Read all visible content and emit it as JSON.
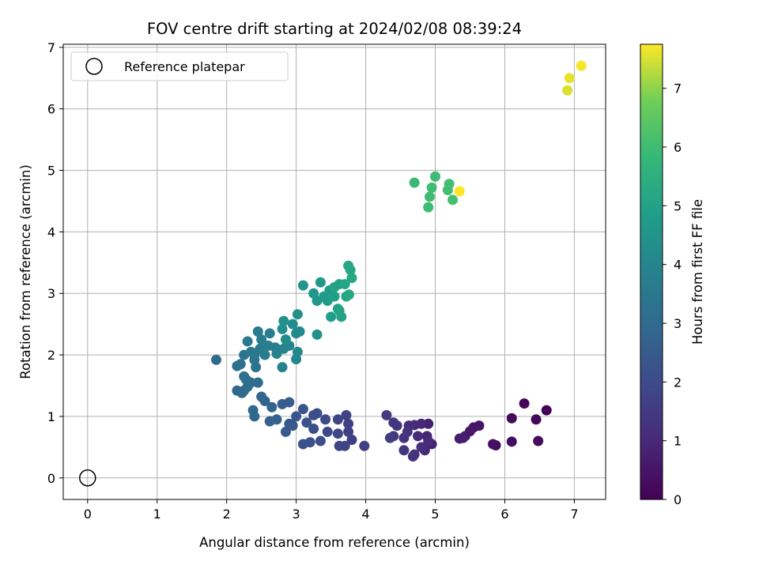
{
  "chart_data": {
    "type": "scatter",
    "title": "FOV centre drift starting at 2024/02/08 08:39:24",
    "xlabel": "Angular distance from reference (arcmin)",
    "ylabel": "Rotation from reference (arcmin)",
    "xlim": [
      -0.35,
      7.45
    ],
    "ylim": [
      -0.35,
      7.05
    ],
    "x_ticks": [
      0,
      1,
      2,
      3,
      4,
      5,
      6,
      7
    ],
    "y_ticks": [
      0,
      1,
      2,
      3,
      4,
      5,
      6,
      7
    ],
    "grid": true,
    "legend": {
      "position": "top-left",
      "entries": [
        "Reference platepar"
      ]
    },
    "reference_point": {
      "x": 0,
      "y": 0
    },
    "colorbar": {
      "label": "Hours from first FF file",
      "colormap": "viridis",
      "range": [
        0,
        7.75
      ],
      "ticks": [
        0,
        1,
        2,
        3,
        4,
        5,
        6,
        7
      ]
    },
    "points": [
      [
        6.6,
        1.1,
        0.05
      ],
      [
        6.28,
        1.21,
        0.1
      ],
      [
        6.45,
        0.95,
        0.15
      ],
      [
        6.1,
        0.97,
        0.2
      ],
      [
        6.48,
        0.6,
        0.25
      ],
      [
        6.1,
        0.59,
        0.3
      ],
      [
        5.87,
        0.53,
        0.35
      ],
      [
        5.83,
        0.55,
        0.4
      ],
      [
        5.63,
        0.85,
        0.5
      ],
      [
        5.55,
        0.82,
        0.55
      ],
      [
        5.5,
        0.76,
        0.6
      ],
      [
        5.43,
        0.68,
        0.65
      ],
      [
        5.35,
        0.64,
        0.7
      ],
      [
        5.4,
        0.65,
        0.75
      ],
      [
        4.9,
        0.88,
        0.8
      ],
      [
        4.95,
        0.55,
        0.85
      ],
      [
        4.88,
        0.68,
        0.9
      ],
      [
        4.8,
        0.88,
        0.95
      ],
      [
        4.85,
        0.45,
        1.0
      ],
      [
        4.75,
        0.68,
        1.05
      ],
      [
        4.7,
        0.86,
        1.1
      ],
      [
        4.62,
        0.85,
        1.15
      ],
      [
        4.55,
        0.65,
        1.2
      ],
      [
        4.7,
        0.38,
        1.25
      ],
      [
        4.68,
        0.35,
        1.3
      ],
      [
        4.55,
        0.45,
        1.35
      ],
      [
        4.4,
        0.68,
        1.4
      ],
      [
        4.45,
        0.85,
        1.45
      ],
      [
        4.3,
        1.02,
        1.5
      ],
      [
        4.35,
        0.65,
        1.55
      ],
      [
        4.8,
        0.5,
        1.2
      ],
      [
        4.9,
        0.6,
        1.1
      ],
      [
        4.6,
        0.75,
        1.3
      ],
      [
        4.4,
        0.9,
        1.35
      ],
      [
        3.98,
        0.52,
        1.6
      ],
      [
        3.8,
        0.62,
        1.65
      ],
      [
        3.75,
        0.75,
        1.7
      ],
      [
        3.72,
        1.02,
        1.75
      ],
      [
        3.7,
        0.52,
        1.8
      ],
      [
        3.62,
        0.52,
        1.85
      ],
      [
        3.6,
        0.72,
        1.9
      ],
      [
        3.45,
        0.75,
        1.95
      ],
      [
        3.42,
        0.95,
        2.0
      ],
      [
        3.35,
        0.6,
        2.05
      ],
      [
        3.25,
        0.8,
        2.1
      ],
      [
        3.3,
        1.05,
        2.15
      ],
      [
        3.2,
        0.58,
        2.2
      ],
      [
        3.15,
        0.9,
        2.25
      ],
      [
        3.1,
        1.12,
        2.3
      ],
      [
        3.0,
        1.0,
        2.35
      ],
      [
        2.9,
        0.88,
        2.4
      ],
      [
        3.1,
        0.55,
        2.2
      ],
      [
        2.95,
        0.85,
        2.45
      ],
      [
        2.85,
        0.75,
        2.5
      ],
      [
        2.9,
        1.23,
        2.55
      ],
      [
        2.8,
        1.2,
        2.6
      ],
      [
        2.72,
        0.95,
        2.65
      ],
      [
        2.62,
        0.92,
        2.7
      ],
      [
        2.65,
        1.15,
        2.75
      ],
      [
        2.55,
        1.25,
        2.8
      ],
      [
        2.5,
        1.32,
        2.85
      ],
      [
        2.4,
        1.0,
        2.9
      ],
      [
        2.38,
        1.1,
        2.95
      ],
      [
        3.75,
        0.88,
        1.7
      ],
      [
        3.6,
        0.95,
        1.8
      ],
      [
        3.25,
        1.02,
        2.1
      ],
      [
        1.85,
        1.92,
        3.0
      ],
      [
        2.25,
        1.42,
        2.95
      ],
      [
        2.15,
        1.42,
        2.9
      ],
      [
        2.22,
        1.38,
        3.0
      ],
      [
        2.3,
        1.48,
        3.05
      ],
      [
        2.45,
        1.55,
        3.1
      ],
      [
        2.35,
        1.55,
        3.1
      ],
      [
        2.28,
        1.6,
        3.15
      ],
      [
        2.15,
        1.82,
        3.2
      ],
      [
        2.2,
        1.85,
        3.25
      ],
      [
        2.25,
        1.65,
        3.2
      ],
      [
        2.42,
        1.8,
        3.3
      ],
      [
        2.4,
        1.92,
        3.35
      ],
      [
        2.25,
        2.0,
        3.4
      ],
      [
        2.3,
        2.22,
        3.45
      ],
      [
        2.35,
        2.05,
        3.5
      ],
      [
        2.48,
        2.1,
        3.55
      ],
      [
        2.45,
        2.38,
        3.6
      ],
      [
        2.62,
        2.35,
        3.65
      ],
      [
        2.55,
        2.0,
        3.7
      ],
      [
        2.7,
        2.12,
        3.75
      ],
      [
        2.72,
        2.02,
        3.8
      ],
      [
        2.8,
        1.8,
        3.85
      ],
      [
        2.82,
        2.1,
        3.9
      ],
      [
        2.9,
        2.15,
        3.95
      ],
      [
        3.0,
        1.93,
        4.0
      ],
      [
        3.02,
        2.05,
        4.05
      ],
      [
        3.0,
        2.35,
        4.1
      ],
      [
        3.05,
        2.38,
        4.15
      ],
      [
        2.95,
        2.5,
        4.2
      ],
      [
        2.85,
        2.25,
        4.25
      ],
      [
        2.8,
        2.42,
        4.3
      ],
      [
        2.82,
        2.55,
        4.35
      ],
      [
        3.02,
        2.66,
        4.4
      ],
      [
        3.3,
        2.33,
        4.4
      ],
      [
        2.4,
        2.0,
        3.5
      ],
      [
        2.6,
        2.15,
        3.7
      ],
      [
        2.5,
        2.25,
        3.6
      ],
      [
        3.1,
        3.13,
        4.5
      ],
      [
        3.25,
        3.0,
        4.55
      ],
      [
        3.3,
        2.88,
        4.6
      ],
      [
        3.35,
        3.18,
        4.65
      ],
      [
        3.4,
        2.95,
        4.7
      ],
      [
        3.48,
        3.05,
        4.75
      ],
      [
        3.45,
        2.88,
        4.8
      ],
      [
        3.5,
        2.62,
        4.85
      ],
      [
        3.55,
        2.95,
        4.9
      ],
      [
        3.6,
        2.75,
        4.95
      ],
      [
        3.62,
        3.15,
        5.0
      ],
      [
        3.65,
        2.62,
        5.05
      ],
      [
        3.62,
        2.72,
        5.05
      ],
      [
        3.7,
        3.15,
        5.1
      ],
      [
        3.72,
        2.95,
        5.1
      ],
      [
        3.75,
        3.45,
        5.15
      ],
      [
        3.78,
        3.38,
        5.15
      ],
      [
        3.8,
        3.25,
        5.2
      ],
      [
        3.76,
        2.98,
        5.2
      ],
      [
        3.55,
        3.1,
        5.0
      ],
      [
        4.7,
        4.8,
        5.9
      ],
      [
        4.9,
        4.4,
        5.95
      ],
      [
        4.92,
        4.57,
        5.95
      ],
      [
        4.95,
        4.72,
        6.0
      ],
      [
        5.0,
        4.9,
        6.0
      ],
      [
        5.18,
        4.68,
        6.05
      ],
      [
        5.2,
        4.78,
        6.05
      ],
      [
        5.25,
        4.52,
        6.1
      ],
      [
        5.35,
        4.66,
        7.75
      ],
      [
        6.9,
        6.3,
        7.5
      ],
      [
        6.93,
        6.5,
        7.6
      ],
      [
        7.1,
        6.7,
        7.7
      ]
    ]
  }
}
